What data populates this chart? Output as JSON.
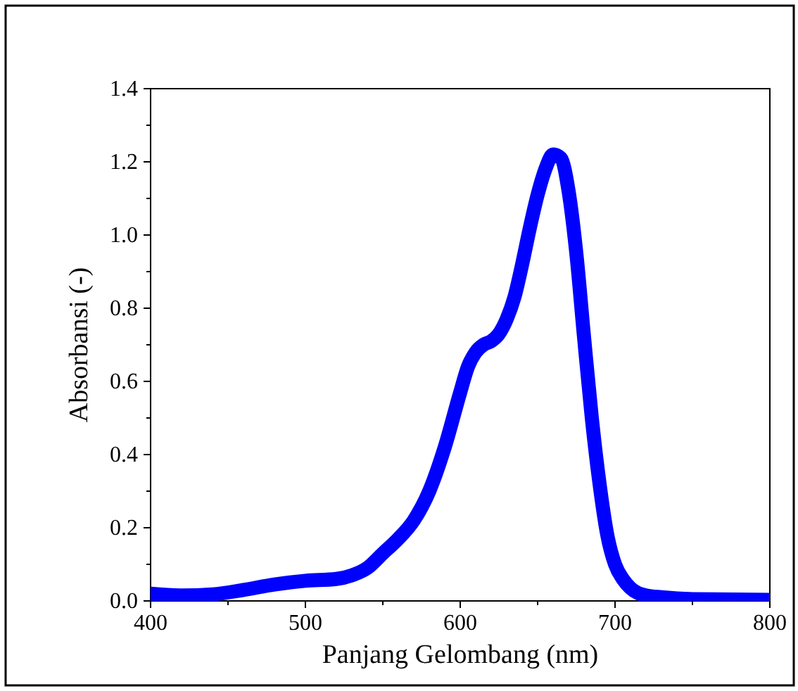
{
  "chart_data": {
    "type": "line",
    "xlabel": "Panjang Gelombang (nm)",
    "ylabel": "Absorbansi (-)",
    "x": [
      400,
      420,
      440,
      460,
      480,
      500,
      520,
      530,
      540,
      550,
      560,
      570,
      580,
      590,
      600,
      605,
      610,
      615,
      620,
      625,
      630,
      635,
      640,
      645,
      650,
      655,
      660,
      665,
      670,
      675,
      680,
      685,
      690,
      695,
      700,
      705,
      710,
      720,
      730,
      750,
      800
    ],
    "series": [
      {
        "color": "#0000ff",
        "values": [
          0.02,
          0.015,
          0.018,
          0.03,
          0.045,
          0.055,
          0.06,
          0.07,
          0.09,
          0.13,
          0.17,
          0.22,
          0.3,
          0.42,
          0.57,
          0.64,
          0.68,
          0.7,
          0.71,
          0.73,
          0.77,
          0.83,
          0.92,
          1.02,
          1.11,
          1.18,
          1.22,
          1.21,
          1.12,
          0.95,
          0.72,
          0.5,
          0.32,
          0.18,
          0.1,
          0.06,
          0.035,
          0.015,
          0.01,
          0.005,
          0.003
        ]
      }
    ],
    "xlim": [
      400,
      800
    ],
    "ylim": [
      0,
      1.4
    ],
    "xticks": [
      400,
      {
        "value": 450,
        "label": null
      },
      500,
      {
        "value": 550,
        "label": null
      },
      600,
      {
        "value": 650,
        "label": null
      },
      700,
      {
        "value": 750,
        "label": null
      },
      800
    ],
    "yticks": [
      {
        "value": 0,
        "label": "0.0"
      },
      {
        "value": 0.1,
        "label": null
      },
      {
        "value": 0.2,
        "label": "0.2"
      },
      {
        "value": 0.3,
        "label": null
      },
      {
        "value": 0.4,
        "label": "0.4"
      },
      {
        "value": 0.5,
        "label": null
      },
      {
        "value": 0.6,
        "label": "0.6"
      },
      {
        "value": 0.7,
        "label": null
      },
      {
        "value": 0.8,
        "label": "0.8"
      },
      {
        "value": 0.9,
        "label": null
      },
      {
        "value": 1.0,
        "label": "1.0"
      },
      {
        "value": 1.1,
        "label": null
      },
      {
        "value": 1.2,
        "label": "1.2"
      },
      {
        "value": 1.3,
        "label": null
      },
      {
        "value": 1.4,
        "label": "1.4"
      }
    ],
    "grid": false,
    "legend": false,
    "marker": "none",
    "line_style": "solid"
  }
}
